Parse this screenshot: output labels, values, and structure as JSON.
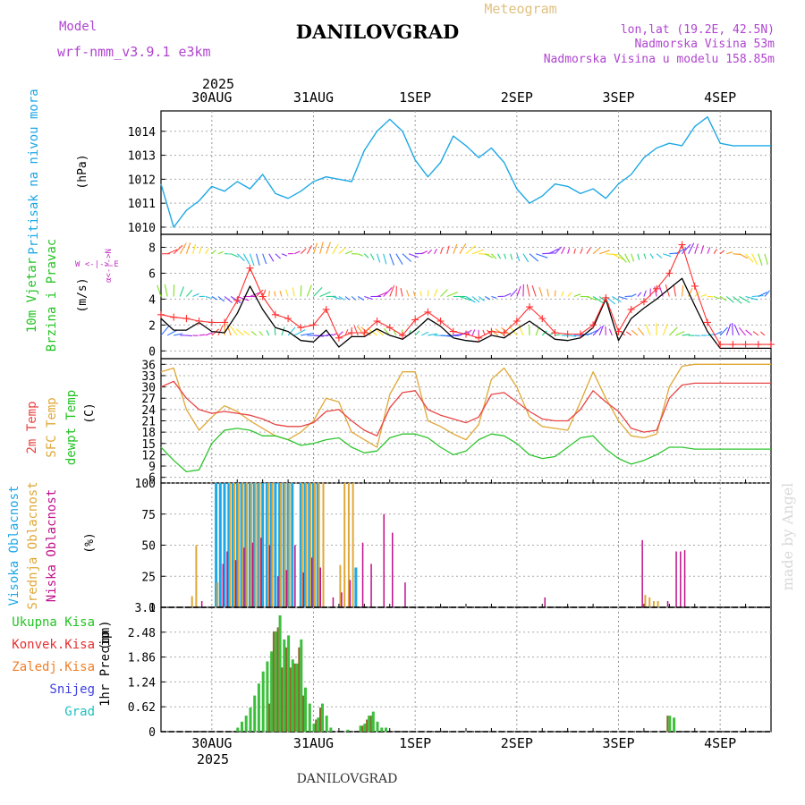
{
  "header": {
    "model_label": "Model",
    "model_name": "wrf-nmm_v3.9.1 e3km",
    "title": "DANILOVGRAD",
    "subtitle": "Meteogram",
    "coords": "lon,lat (19.2E, 42.5N)",
    "elevation": "Nadmorska Visina 53m",
    "model_elevation": "Nadmorska Visina u modelu 158.85m",
    "footer": "DANILOVGRAD",
    "watermark": "made by Angel"
  },
  "colors": {
    "pressure": "#1ea8e6",
    "wind_speed": "#000000",
    "wind_gust": "#ff3030",
    "temp_2m": "#e84545",
    "temp_sfc": "#dfa838",
    "dewpoint": "#2ec52e",
    "cloud_high": "#1ea8e6",
    "cloud_mid": "#dfa838",
    "cloud_low": "#c0108a",
    "precip_total": "#3cbf3c",
    "precip_conv": "#e83030",
    "precip_frozen": "#f07f27",
    "snow": "#4040e0",
    "graupel": "#20c0c0"
  },
  "chart_data": [
    {
      "type": "line",
      "name": "pressure",
      "ylabel": "Pritisak na nivou mora",
      "units": "(hPa)",
      "ylim": [
        1009.7,
        1014.85
      ],
      "yticks": [
        1010,
        1011,
        1012,
        1013,
        1014
      ],
      "x_hours": [
        0,
        3,
        6,
        9,
        12,
        15,
        18,
        21,
        24,
        27,
        30,
        33,
        36,
        39,
        42,
        45,
        48,
        51,
        54,
        57,
        60,
        63,
        66,
        69,
        72,
        75,
        78,
        81,
        84,
        87,
        90,
        93,
        96,
        99,
        102,
        105,
        108,
        111,
        114,
        117,
        120,
        123,
        126,
        129,
        132,
        135,
        138,
        141,
        144
      ],
      "values": [
        1011.8,
        1010.0,
        1010.7,
        1011.1,
        1011.7,
        1011.5,
        1011.9,
        1011.6,
        1012.2,
        1011.4,
        1011.2,
        1011.5,
        1011.9,
        1012.1,
        1012.0,
        1011.9,
        1013.2,
        1014.0,
        1014.5,
        1014.0,
        1012.8,
        1012.1,
        1012.7,
        1013.8,
        1013.4,
        1012.9,
        1013.3,
        1012.7,
        1011.6,
        1011.0,
        1011.3,
        1011.8,
        1011.7,
        1011.4,
        1011.6,
        1011.2,
        1011.8,
        1012.2,
        1012.9,
        1013.3,
        1013.5,
        1013.4,
        1014.2,
        1014.6,
        1013.5,
        1013.4,
        1013.4,
        1013.4,
        1013.4
      ]
    },
    {
      "type": "line",
      "name": "wind",
      "ylabel": "10m Vjetar Brzina i Pravac",
      "units": "(m/s)",
      "compass": "W <-|-> E",
      "ylim": [
        -0.6,
        9.0
      ],
      "yticks": [
        0,
        2,
        4,
        6,
        8
      ],
      "x_hours": [
        0,
        3,
        6,
        9,
        12,
        15,
        18,
        21,
        24,
        27,
        30,
        33,
        36,
        39,
        42,
        45,
        48,
        51,
        54,
        57,
        60,
        63,
        66,
        69,
        72,
        75,
        78,
        81,
        84,
        87,
        90,
        93,
        96,
        99,
        102,
        105,
        108,
        111,
        114,
        117,
        120,
        123,
        126,
        129,
        132,
        135,
        138,
        141,
        144
      ],
      "series": [
        {
          "name": "speed",
          "values": [
            2.5,
            1.6,
            1.6,
            2.2,
            1.5,
            1.4,
            2.9,
            5.0,
            3.2,
            1.8,
            1.5,
            0.8,
            0.7,
            1.6,
            0.3,
            1.1,
            1.1,
            1.7,
            1.2,
            0.9,
            1.6,
            2.5,
            1.9,
            1.0,
            0.8,
            0.7,
            1.2,
            1.0,
            1.7,
            2.3,
            1.6,
            0.9,
            0.8,
            1.0,
            1.8,
            4.0,
            0.8,
            2.5,
            3.3,
            4.0,
            4.8,
            5.6,
            3.5,
            1.5,
            0.2,
            0.2,
            0.2,
            0.2,
            0.2
          ]
        },
        {
          "name": "gust",
          "values": [
            2.8,
            2.6,
            2.5,
            2.3,
            2.2,
            2.2,
            3.9,
            6.4,
            4.2,
            2.8,
            2.5,
            1.8,
            2.0,
            3.2,
            1.0,
            1.4,
            1.4,
            2.3,
            1.8,
            1.2,
            2.4,
            3.0,
            2.3,
            1.5,
            1.3,
            1.0,
            1.5,
            1.4,
            2.3,
            3.4,
            2.5,
            1.4,
            1.3,
            1.3,
            2.0,
            4.1,
            1.5,
            3.2,
            3.8,
            4.8,
            6.0,
            8.2,
            5.0,
            2.2,
            0.5,
            0.5,
            0.5,
            0.5,
            0.5
          ]
        }
      ]
    },
    {
      "type": "line",
      "name": "temperature",
      "ylabel": [
        "2m Temp",
        "SFC Temp",
        "dewpt Temp"
      ],
      "units": "(C)",
      "ylim": [
        4.5,
        37.5
      ],
      "yticks": [
        6,
        9,
        12,
        15,
        18,
        21,
        24,
        27,
        30,
        33,
        36
      ],
      "x_hours": [
        0,
        3,
        6,
        9,
        12,
        15,
        18,
        21,
        24,
        27,
        30,
        33,
        36,
        39,
        42,
        45,
        48,
        51,
        54,
        57,
        60,
        63,
        66,
        69,
        72,
        75,
        78,
        81,
        84,
        87,
        90,
        93,
        96,
        99,
        102,
        105,
        108,
        111,
        114,
        117,
        120,
        123,
        126,
        129,
        132,
        135,
        138,
        141,
        144
      ],
      "series": [
        {
          "name": "2m",
          "values": [
            30.0,
            31.5,
            27.0,
            24.0,
            23.0,
            23.5,
            23.0,
            22.5,
            21.5,
            20.0,
            19.5,
            19.5,
            20.5,
            23.5,
            24.0,
            21.0,
            18.5,
            17.0,
            24.5,
            28.5,
            29.0,
            24.0,
            22.5,
            21.5,
            20.5,
            22.0,
            28.0,
            28.5,
            26.0,
            23.5,
            21.5,
            21.0,
            21.0,
            24.0,
            29.0,
            26.0,
            23.5,
            19.0,
            18.0,
            18.5,
            27.0,
            30.5,
            31.0,
            31.0,
            31.0,
            31.0,
            31.0,
            31.0,
            31.0
          ]
        },
        {
          "name": "sfc",
          "values": [
            34.0,
            35.0,
            24.0,
            18.5,
            22.0,
            25.0,
            23.5,
            21.0,
            19.0,
            17.0,
            16.0,
            18.0,
            21.0,
            27.0,
            26.0,
            18.0,
            16.0,
            14.0,
            28.0,
            34.0,
            34.0,
            21.0,
            19.5,
            17.5,
            16.0,
            20.0,
            32.0,
            35.0,
            30.0,
            22.0,
            19.5,
            19.0,
            18.5,
            26.0,
            34.0,
            27.0,
            21.0,
            17.0,
            16.5,
            17.5,
            30.0,
            35.5,
            36.0,
            36.0,
            36.0,
            36.0,
            36.0,
            36.0,
            36.0
          ]
        },
        {
          "name": "dewpoint",
          "values": [
            14.0,
            10.5,
            7.5,
            8.0,
            15.0,
            18.5,
            19.0,
            18.5,
            17.0,
            17.0,
            16.0,
            14.5,
            15.0,
            16.0,
            16.5,
            14.0,
            12.5,
            13.0,
            16.5,
            17.5,
            17.5,
            16.5,
            14.0,
            12.0,
            13.0,
            16.0,
            17.5,
            17.0,
            15.0,
            12.0,
            11.0,
            11.5,
            14.0,
            16.5,
            17.0,
            13.5,
            11.0,
            9.5,
            10.5,
            12.0,
            14.0,
            14.0,
            13.5,
            13.5,
            13.5,
            13.5,
            13.5,
            13.5,
            13.5
          ]
        }
      ]
    },
    {
      "type": "bar",
      "name": "cloud_cover",
      "ylabel": [
        "Visoka Oblacnost",
        "Srednja Oblacnost",
        "Niska Oblacnost"
      ],
      "units": "(%)",
      "ylim": [
        0,
        100
      ],
      "yticks": [
        0,
        25,
        50,
        75,
        100
      ],
      "series": [
        {
          "name": "visoka",
          "points": [
            [
              13,
              100
            ],
            [
              14,
              100
            ],
            [
              15,
              100
            ],
            [
              16,
              100
            ],
            [
              17,
              100
            ],
            [
              18,
              100
            ],
            [
              19,
              100
            ],
            [
              20,
              100
            ],
            [
              21,
              100
            ],
            [
              22,
              100
            ],
            [
              23,
              100
            ],
            [
              24,
              100
            ],
            [
              25,
              100
            ],
            [
              26,
              100
            ],
            [
              27,
              100
            ],
            [
              28,
              100
            ],
            [
              29,
              100
            ],
            [
              30,
              100
            ],
            [
              31,
              100
            ],
            [
              33,
              100
            ],
            [
              34,
              100
            ],
            [
              35,
              100
            ],
            [
              36,
              100
            ],
            [
              37,
              100
            ],
            [
              46,
              32
            ]
          ]
        },
        {
          "name": "srednja",
          "points": [
            [
              7,
              9
            ],
            [
              8,
              50
            ],
            [
              13,
              20
            ],
            [
              16,
              100
            ],
            [
              17,
              100
            ],
            [
              18,
              100
            ],
            [
              19,
              100
            ],
            [
              20,
              100
            ],
            [
              21,
              100
            ],
            [
              22,
              100
            ],
            [
              23,
              100
            ],
            [
              25,
              100
            ],
            [
              26,
              100
            ],
            [
              28,
              100
            ],
            [
              29,
              100
            ],
            [
              30,
              100
            ],
            [
              33,
              100
            ],
            [
              34,
              100
            ],
            [
              35,
              100
            ],
            [
              36,
              100
            ],
            [
              37,
              100
            ],
            [
              38,
              100
            ],
            [
              42,
              34
            ],
            [
              43,
              100
            ],
            [
              44,
              100
            ],
            [
              45,
              100
            ],
            [
              114,
              10
            ],
            [
              115,
              8
            ],
            [
              116,
              5
            ],
            [
              117,
              5
            ]
          ]
        },
        {
          "name": "niska",
          "points": [
            [
              9,
              5
            ],
            [
              14,
              35
            ],
            [
              15,
              45
            ],
            [
              17,
              38
            ],
            [
              19,
              48
            ],
            [
              21,
              52
            ],
            [
              23,
              56
            ],
            [
              25,
              50
            ],
            [
              27,
              25
            ],
            [
              29,
              30
            ],
            [
              31,
              50
            ],
            [
              33,
              28
            ],
            [
              35,
              40
            ],
            [
              37,
              32
            ],
            [
              40,
              8
            ],
            [
              42,
              12
            ],
            [
              44,
              22
            ],
            [
              47,
              52
            ],
            [
              49,
              35
            ],
            [
              52,
              75
            ],
            [
              54,
              60
            ],
            [
              57,
              20
            ],
            [
              90,
              8
            ],
            [
              113,
              54
            ],
            [
              119,
              5
            ],
            [
              121,
              45
            ],
            [
              122,
              45
            ],
            [
              123,
              46
            ]
          ]
        }
      ]
    },
    {
      "type": "bar",
      "name": "precipitation",
      "ylabel": "1hr Precip",
      "units": "(mm)",
      "ylim": [
        0,
        3.1
      ],
      "yticks": [
        0,
        0.62,
        1.24,
        1.86,
        2.48,
        3.1
      ],
      "legend": [
        "Ukupna Kisa",
        "Konvek.Kisa",
        "Zaledj.Kisa",
        "Snijeg",
        "Grad"
      ],
      "series": [
        {
          "name": "ukupna",
          "points": [
            [
              18,
              0.1
            ],
            [
              19,
              0.25
            ],
            [
              20,
              0.4
            ],
            [
              21,
              0.6
            ],
            [
              22,
              0.9
            ],
            [
              23,
              1.2
            ],
            [
              24,
              1.5
            ],
            [
              25,
              1.75
            ],
            [
              26,
              2.0
            ],
            [
              27,
              2.5
            ],
            [
              28,
              2.9
            ],
            [
              29,
              2.3
            ],
            [
              30,
              2.4
            ],
            [
              31,
              1.8
            ],
            [
              32,
              1.7
            ],
            [
              33,
              2.3
            ],
            [
              34,
              1.1
            ],
            [
              35,
              0.7
            ],
            [
              36,
              0.2
            ],
            [
              37,
              0.35
            ],
            [
              38,
              0.7
            ],
            [
              39,
              0.4
            ],
            [
              40,
              0.1
            ],
            [
              44,
              0.05
            ],
            [
              47,
              0.15
            ],
            [
              48,
              0.2
            ],
            [
              49,
              0.4
            ],
            [
              50,
              0.5
            ],
            [
              51,
              0.25
            ],
            [
              52,
              0.1
            ],
            [
              53,
              0.1
            ],
            [
              120,
              0.4
            ],
            [
              121,
              0.35
            ]
          ]
        },
        {
          "name": "konvek",
          "points": [
            [
              26,
              0.7
            ],
            [
              27,
              2.5
            ],
            [
              28,
              2.6
            ],
            [
              29,
              1.6
            ],
            [
              30,
              2.1
            ],
            [
              31,
              1.6
            ],
            [
              32,
              1.7
            ],
            [
              33,
              2.1
            ],
            [
              34,
              0.9
            ],
            [
              37,
              0.3
            ],
            [
              38,
              0.6
            ],
            [
              48,
              0.15
            ],
            [
              49,
              0.3
            ],
            [
              50,
              0.4
            ],
            [
              120,
              0.4
            ]
          ]
        }
      ]
    }
  ],
  "time_axis": {
    "top_year": "2025",
    "bottom_year": "2025",
    "day_labels": [
      "30AUG",
      "31AUG",
      "1SEP",
      "2SEP",
      "3SEP",
      "4SEP"
    ],
    "day_hours": [
      12,
      36,
      60,
      84,
      108,
      132
    ],
    "range_hours": [
      0,
      144
    ]
  }
}
